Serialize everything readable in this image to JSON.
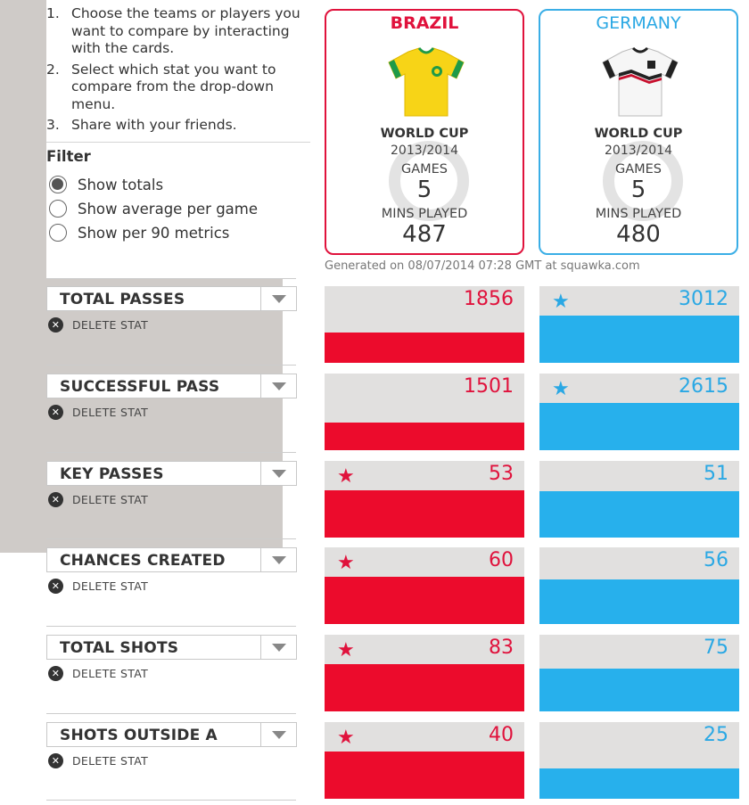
{
  "instructions": [
    {
      "num": "1.",
      "text": "Choose the teams or players you want to compare by interacting with the cards."
    },
    {
      "num": "2.",
      "text": "Select which stat you want to compare from the drop-down menu."
    },
    {
      "num": "3.",
      "text": "Share with your friends."
    }
  ],
  "filter": {
    "title": "Filter",
    "options": [
      {
        "label": "Show totals",
        "checked": true
      },
      {
        "label": "Show average per game",
        "checked": false
      },
      {
        "label": "Show per 90 metrics",
        "checked": false
      }
    ]
  },
  "cards": [
    {
      "team": "BRAZIL",
      "competition": "WORLD CUP",
      "season": "2013/2014",
      "games_label": "GAMES",
      "games": "5",
      "mins_label": "MINS PLAYED",
      "mins": "487",
      "color": "#e0123c",
      "shirt_icon": "brazil-shirt-icon"
    },
    {
      "team": "GERMANY",
      "competition": "WORLD CUP",
      "season": "2013/2014",
      "games_label": "GAMES",
      "games": "5",
      "mins_label": "MINS PLAYED",
      "mins": "480",
      "color": "#2aa8e4",
      "shirt_icon": "germany-shirt-icon"
    }
  ],
  "generated": "Generated on 08/07/2014 07:28 GMT at squawka.com",
  "delete_label": "DELETE STAT",
  "stats": [
    {
      "name": "TOTAL PASSES",
      "brazil": {
        "value": "1856",
        "fill": 0.4,
        "star": false
      },
      "germany": {
        "value": "3012",
        "fill": 0.62,
        "star": true
      }
    },
    {
      "name": "SUCCESSFUL PASS",
      "brazil": {
        "value": "1501",
        "fill": 0.36,
        "star": false
      },
      "germany": {
        "value": "2615",
        "fill": 0.62,
        "star": true
      }
    },
    {
      "name": "KEY PASSES",
      "brazil": {
        "value": "53",
        "fill": 0.62,
        "star": true
      },
      "germany": {
        "value": "51",
        "fill": 0.6,
        "star": false
      }
    },
    {
      "name": "CHANCES CREATED",
      "brazil": {
        "value": "60",
        "fill": 0.62,
        "star": true
      },
      "germany": {
        "value": "56",
        "fill": 0.58,
        "star": false
      }
    },
    {
      "name": "TOTAL SHOTS",
      "brazil": {
        "value": "83",
        "fill": 0.62,
        "star": true
      },
      "germany": {
        "value": "75",
        "fill": 0.56,
        "star": false
      }
    },
    {
      "name": "SHOTS OUTSIDE A",
      "brazil": {
        "value": "40",
        "fill": 0.62,
        "star": true
      },
      "germany": {
        "value": "25",
        "fill": 0.39,
        "star": false
      }
    }
  ]
}
